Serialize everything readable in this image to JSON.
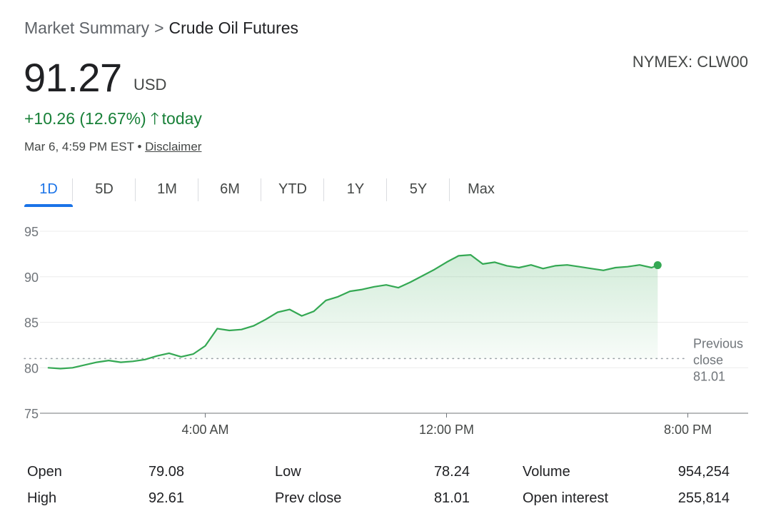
{
  "breadcrumb": {
    "root": "Market Summary",
    "separator": ">",
    "current": "Crude Oil Futures"
  },
  "exchange": "NYMEX: CLW00",
  "quote": {
    "price": "91.27",
    "currency": "USD",
    "change": "+10.26 (12.67%)",
    "change_arrow": "🡑",
    "change_period": "today",
    "timestamp": "Mar 6, 4:59 PM EST",
    "dot": "•",
    "disclaimer": "Disclaimer"
  },
  "tabs": [
    {
      "label": "1D",
      "active": true
    },
    {
      "label": "5D",
      "active": false
    },
    {
      "label": "1M",
      "active": false
    },
    {
      "label": "6M",
      "active": false
    },
    {
      "label": "YTD",
      "active": false
    },
    {
      "label": "1Y",
      "active": false
    },
    {
      "label": "5Y",
      "active": false
    },
    {
      "label": "Max",
      "active": false
    }
  ],
  "colors": {
    "positive": "#188038",
    "line": "#34a853",
    "accent": "#1a73e8"
  },
  "chart_data": {
    "type": "area",
    "x_unit": "hours",
    "x_start": "12:00 AM",
    "xlim": [
      -2,
      22
    ],
    "ylim": [
      75,
      95
    ],
    "yticks": [
      75,
      80,
      85,
      90,
      95
    ],
    "ytick_labels": [
      "75",
      "80",
      "85",
      "90",
      "95"
    ],
    "xticks": [
      4,
      12,
      20
    ],
    "xtick_labels": [
      "4:00 AM",
      "12:00 PM",
      "8:00 PM"
    ],
    "grid": true,
    "reference_line": {
      "value": 81.01,
      "label_lines": [
        "Previous",
        "close",
        "81.01"
      ]
    },
    "series": [
      {
        "x": [
          -1.2,
          -0.8,
          -0.4,
          0.0,
          0.4,
          0.8,
          1.2,
          1.6,
          2.0,
          2.4,
          2.8,
          3.2,
          3.6,
          4.0,
          4.4,
          4.8,
          5.2,
          5.6,
          6.0,
          6.4,
          6.8,
          7.2,
          7.6,
          8.0,
          8.4,
          8.8,
          9.2,
          9.6,
          10.0,
          10.4,
          10.8,
          11.2,
          11.6,
          12.0,
          12.4,
          12.8,
          13.2,
          13.6,
          14.0,
          14.4,
          14.8,
          15.2,
          15.6,
          16.0,
          16.4,
          16.8,
          17.2,
          17.6,
          18.0,
          18.4,
          18.8,
          19.0
        ],
        "y": [
          80.0,
          79.9,
          80.0,
          80.3,
          80.6,
          80.8,
          80.6,
          80.7,
          80.9,
          81.3,
          81.6,
          81.2,
          81.5,
          82.4,
          84.3,
          84.1,
          84.2,
          84.6,
          85.3,
          86.1,
          86.4,
          85.7,
          86.2,
          87.4,
          87.8,
          88.4,
          88.6,
          88.9,
          89.1,
          88.8,
          89.4,
          90.1,
          90.8,
          91.6,
          92.3,
          92.4,
          91.4,
          91.6,
          91.2,
          91.0,
          91.3,
          90.9,
          91.2,
          91.3,
          91.1,
          90.9,
          90.7,
          91.0,
          91.1,
          91.3,
          91.0,
          91.27
        ]
      }
    ]
  },
  "stats": [
    {
      "label": "Open",
      "value": "79.08"
    },
    {
      "label": "High",
      "value": "92.61"
    },
    {
      "label": "Low",
      "value": "78.24"
    },
    {
      "label": "Prev close",
      "value": "81.01"
    },
    {
      "label": "Volume",
      "value": "954,254"
    },
    {
      "label": "Open interest",
      "value": "255,814"
    }
  ]
}
